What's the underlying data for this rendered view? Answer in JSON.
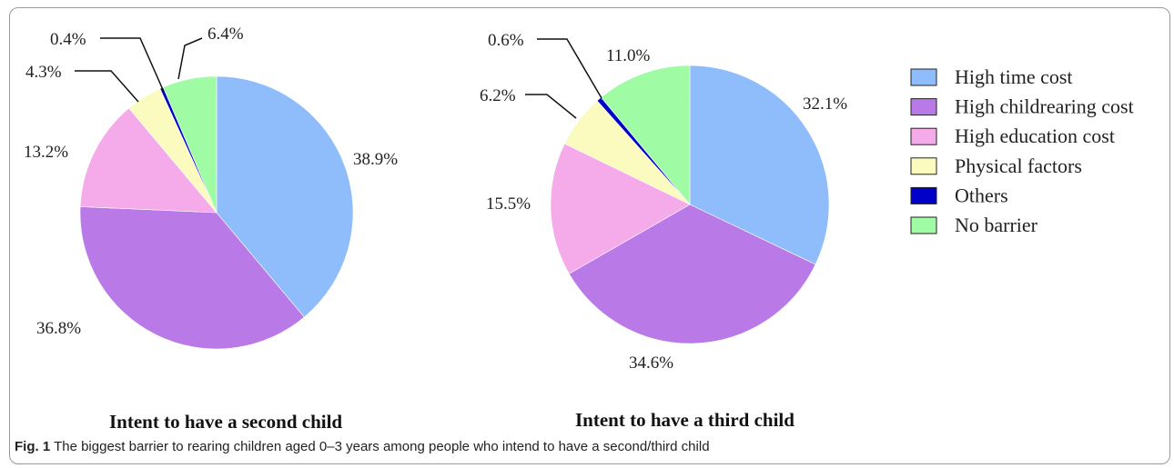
{
  "chart_data": [
    {
      "type": "pie",
      "title": "Intent to have a second child",
      "labels": [
        "High time cost",
        "High childrearing cost",
        "High education cost",
        "Physical factors",
        "Others",
        "No barrier"
      ],
      "values": [
        38.9,
        36.8,
        13.2,
        4.3,
        0.4,
        6.4
      ],
      "value_labels": [
        "38.9%",
        "36.8%",
        "13.2%",
        "4.3%",
        "0.4%",
        "6.4%"
      ],
      "colors": [
        "#8fbcfa",
        "#b979e6",
        "#f5aaea",
        "#fbfbc0",
        "#0000c8",
        "#a0fca4"
      ],
      "start_angle": "12 o'clock",
      "direction": "clockwise"
    },
    {
      "type": "pie",
      "title": "Intent to have a third child",
      "labels": [
        "High time cost",
        "High childrearing cost",
        "High education cost",
        "Physical factors",
        "Others",
        "No barrier"
      ],
      "values": [
        32.1,
        34.6,
        15.5,
        6.2,
        0.6,
        11.0
      ],
      "value_labels": [
        "32.1%",
        "34.6%",
        "15.5%",
        "6.2%",
        "0.6%",
        "11.0%"
      ],
      "colors": [
        "#8fbcfa",
        "#b979e6",
        "#f5aaea",
        "#fbfbc0",
        "#0000c8",
        "#a0fca4"
      ],
      "start_angle": "12 o'clock",
      "direction": "clockwise"
    }
  ],
  "legend": {
    "placement": "right",
    "items": [
      {
        "label": "High time cost",
        "color": "#8fbcfa"
      },
      {
        "label": "High childrearing cost",
        "color": "#b979e6"
      },
      {
        "label": "High education cost",
        "color": "#f5aaea"
      },
      {
        "label": "Physical factors",
        "color": "#fbfbc0"
      },
      {
        "label": "Others",
        "color": "#0000c8"
      },
      {
        "label": "No barrier",
        "color": "#a0fca4"
      }
    ]
  },
  "caption": {
    "label": "Fig. 1",
    "text": "The biggest barrier to rearing children aged 0–3 years among people who intend to have a second/third child"
  }
}
